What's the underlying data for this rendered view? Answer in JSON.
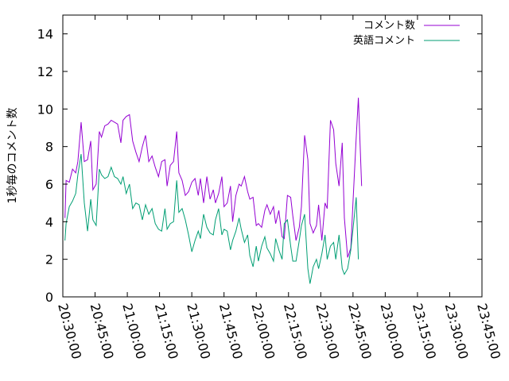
{
  "chart_data": {
    "type": "line",
    "title": "",
    "xlabel": "",
    "ylabel": "1秒毎のコメント数",
    "xlim": [
      "20:30:00",
      "23:45:00"
    ],
    "ylim": [
      0,
      15
    ],
    "x_ticks": [
      "20:30:00",
      "20:45:00",
      "21:00:00",
      "21:15:00",
      "21:30:00",
      "21:45:00",
      "22:00:00",
      "22:15:00",
      "22:30:00",
      "22:45:00",
      "23:00:00",
      "23:15:00",
      "23:30:00",
      "23:45:00"
    ],
    "y_ticks": [
      0,
      2,
      4,
      6,
      8,
      10,
      12,
      14
    ],
    "grid": false,
    "legend_position": "top-right",
    "series": [
      {
        "name": "コメント数",
        "color": "#9400d3",
        "points": [
          [
            "20:31:00",
            4.2
          ],
          [
            "20:31:30",
            6.2
          ],
          [
            "20:33:00",
            6.1
          ],
          [
            "20:34:30",
            6.8
          ],
          [
            "20:36:00",
            6.6
          ],
          [
            "20:37:00",
            7.2
          ],
          [
            "20:38:30",
            9.3
          ],
          [
            "20:40:00",
            7.2
          ],
          [
            "20:41:30",
            7.3
          ],
          [
            "20:43:00",
            8.3
          ],
          [
            "20:44:00",
            5.7
          ],
          [
            "20:45:30",
            6.0
          ],
          [
            "20:47:00",
            8.8
          ],
          [
            "20:48:00",
            8.5
          ],
          [
            "20:49:30",
            9.1
          ],
          [
            "20:51:00",
            9.2
          ],
          [
            "20:52:30",
            9.4
          ],
          [
            "20:54:00",
            9.3
          ],
          [
            "20:55:30",
            9.2
          ],
          [
            "20:57:00",
            8.2
          ],
          [
            "20:58:00",
            9.4
          ],
          [
            "20:59:30",
            9.6
          ],
          [
            "21:01:00",
            9.7
          ],
          [
            "21:02:30",
            8.3
          ],
          [
            "21:04:00",
            7.7
          ],
          [
            "21:05:30",
            7.2
          ],
          [
            "21:07:00",
            8.0
          ],
          [
            "21:08:30",
            8.6
          ],
          [
            "21:10:00",
            7.2
          ],
          [
            "21:11:30",
            7.5
          ],
          [
            "21:13:00",
            6.9
          ],
          [
            "21:14:30",
            6.4
          ],
          [
            "21:16:00",
            7.2
          ],
          [
            "21:17:30",
            7.3
          ],
          [
            "21:18:30",
            5.9
          ],
          [
            "21:20:00",
            7.0
          ],
          [
            "21:21:30",
            7.2
          ],
          [
            "21:23:00",
            8.8
          ],
          [
            "21:24:00",
            6.6
          ],
          [
            "21:25:30",
            6.2
          ],
          [
            "21:27:00",
            5.4
          ],
          [
            "21:28:30",
            5.6
          ],
          [
            "21:30:00",
            6.1
          ],
          [
            "21:31:30",
            6.3
          ],
          [
            "21:33:00",
            5.4
          ],
          [
            "21:34:00",
            6.3
          ],
          [
            "21:35:30",
            5.0
          ],
          [
            "21:37:00",
            6.4
          ],
          [
            "21:38:30",
            5.2
          ],
          [
            "21:40:00",
            5.7
          ],
          [
            "21:41:00",
            5.0
          ],
          [
            "21:42:30",
            5.5
          ],
          [
            "21:44:00",
            6.4
          ],
          [
            "21:45:00",
            4.8
          ],
          [
            "21:46:30",
            5.0
          ],
          [
            "21:48:00",
            5.9
          ],
          [
            "21:49:00",
            4.0
          ],
          [
            "21:50:30",
            5.4
          ],
          [
            "21:52:00",
            6.0
          ],
          [
            "21:53:00",
            5.9
          ],
          [
            "21:54:30",
            6.4
          ],
          [
            "21:56:00",
            5.6
          ],
          [
            "21:57:00",
            5.2
          ],
          [
            "21:58:30",
            5.3
          ],
          [
            "22:00:00",
            3.8
          ],
          [
            "22:01:00",
            3.9
          ],
          [
            "22:02:30",
            3.7
          ],
          [
            "22:04:00",
            4.6
          ],
          [
            "22:05:00",
            4.9
          ],
          [
            "22:06:30",
            4.4
          ],
          [
            "22:08:00",
            4.8
          ],
          [
            "22:09:00",
            3.9
          ],
          [
            "22:10:30",
            4.6
          ],
          [
            "22:12:00",
            3.2
          ],
          [
            "22:13:00",
            3.1
          ],
          [
            "22:14:30",
            5.4
          ],
          [
            "22:16:00",
            5.3
          ],
          [
            "22:17:00",
            4.3
          ],
          [
            "22:18:30",
            3.0
          ],
          [
            "22:20:00",
            3.7
          ],
          [
            "22:21:00",
            4.8
          ],
          [
            "22:22:30",
            8.6
          ],
          [
            "22:24:00",
            7.3
          ],
          [
            "22:25:00",
            3.9
          ],
          [
            "22:26:30",
            3.4
          ],
          [
            "22:28:00",
            3.8
          ],
          [
            "22:29:00",
            4.9
          ],
          [
            "22:30:30",
            3.0
          ],
          [
            "22:32:00",
            5.0
          ],
          [
            "22:33:00",
            4.7
          ],
          [
            "22:34:30",
            9.4
          ],
          [
            "22:36:00",
            8.9
          ],
          [
            "22:37:00",
            7.1
          ],
          [
            "22:38:30",
            5.9
          ],
          [
            "22:40:00",
            8.2
          ],
          [
            "22:41:00",
            4.2
          ],
          [
            "22:42:30",
            2.1
          ],
          [
            "22:44:00",
            2.6
          ],
          [
            "22:45:00",
            5.0
          ],
          [
            "22:46:30",
            8.5
          ],
          [
            "22:47:30",
            10.6
          ],
          [
            "22:49:00",
            5.9
          ]
        ]
      },
      {
        "name": "英語コメント",
        "color": "#009e73",
        "points": [
          [
            "20:31:00",
            3.0
          ],
          [
            "20:31:30",
            3.9
          ],
          [
            "20:33:00",
            4.8
          ],
          [
            "20:34:30",
            5.1
          ],
          [
            "20:36:00",
            5.5
          ],
          [
            "20:37:00",
            6.5
          ],
          [
            "20:38:30",
            7.6
          ],
          [
            "20:40:00",
            5.0
          ],
          [
            "20:41:30",
            3.5
          ],
          [
            "20:43:00",
            5.2
          ],
          [
            "20:44:00",
            4.1
          ],
          [
            "20:45:30",
            3.8
          ],
          [
            "20:47:00",
            6.8
          ],
          [
            "20:48:00",
            6.5
          ],
          [
            "20:49:30",
            6.3
          ],
          [
            "20:51:00",
            6.4
          ],
          [
            "20:52:30",
            6.9
          ],
          [
            "20:54:00",
            6.4
          ],
          [
            "20:55:30",
            6.3
          ],
          [
            "20:57:00",
            6.0
          ],
          [
            "20:58:00",
            6.4
          ],
          [
            "20:59:30",
            5.5
          ],
          [
            "21:01:00",
            6.0
          ],
          [
            "21:02:30",
            4.7
          ],
          [
            "21:04:00",
            5.0
          ],
          [
            "21:05:30",
            4.9
          ],
          [
            "21:07:00",
            4.1
          ],
          [
            "21:08:30",
            4.9
          ],
          [
            "21:10:00",
            4.4
          ],
          [
            "21:11:30",
            4.7
          ],
          [
            "21:13:00",
            3.9
          ],
          [
            "21:14:30",
            3.6
          ],
          [
            "21:16:00",
            3.5
          ],
          [
            "21:17:30",
            4.7
          ],
          [
            "21:18:30",
            3.6
          ],
          [
            "21:20:00",
            3.9
          ],
          [
            "21:21:30",
            4.0
          ],
          [
            "21:23:00",
            6.2
          ],
          [
            "21:24:00",
            4.5
          ],
          [
            "21:25:30",
            4.7
          ],
          [
            "21:27:00",
            4.1
          ],
          [
            "21:28:30",
            3.3
          ],
          [
            "21:30:00",
            2.4
          ],
          [
            "21:31:30",
            3.0
          ],
          [
            "21:33:00",
            3.5
          ],
          [
            "21:34:00",
            3.1
          ],
          [
            "21:35:30",
            4.4
          ],
          [
            "21:37:00",
            3.7
          ],
          [
            "21:38:30",
            3.4
          ],
          [
            "21:40:00",
            3.3
          ],
          [
            "21:41:00",
            4.1
          ],
          [
            "21:42:30",
            4.7
          ],
          [
            "21:44:00",
            3.3
          ],
          [
            "21:45:00",
            3.6
          ],
          [
            "21:46:30",
            3.5
          ],
          [
            "21:48:00",
            2.5
          ],
          [
            "21:49:00",
            3.0
          ],
          [
            "21:50:30",
            3.5
          ],
          [
            "21:52:00",
            4.2
          ],
          [
            "21:53:00",
            3.6
          ],
          [
            "21:54:30",
            2.9
          ],
          [
            "21:56:00",
            3.3
          ],
          [
            "21:57:00",
            2.2
          ],
          [
            "21:58:30",
            1.6
          ],
          [
            "22:00:00",
            2.7
          ],
          [
            "22:01:00",
            1.9
          ],
          [
            "22:02:30",
            2.7
          ],
          [
            "22:04:00",
            3.2
          ],
          [
            "22:05:00",
            2.6
          ],
          [
            "22:06:30",
            2.3
          ],
          [
            "22:08:00",
            1.9
          ],
          [
            "22:09:00",
            3.1
          ],
          [
            "22:10:30",
            2.5
          ],
          [
            "22:12:00",
            2.0
          ],
          [
            "22:13:00",
            3.9
          ],
          [
            "22:14:30",
            4.1
          ],
          [
            "22:16:00",
            2.7
          ],
          [
            "22:17:00",
            1.9
          ],
          [
            "22:18:30",
            1.9
          ],
          [
            "22:20:00",
            3.0
          ],
          [
            "22:21:00",
            3.8
          ],
          [
            "22:22:30",
            4.4
          ],
          [
            "22:24:00",
            1.5
          ],
          [
            "22:25:00",
            0.7
          ],
          [
            "22:26:30",
            1.6
          ],
          [
            "22:28:00",
            2.0
          ],
          [
            "22:29:00",
            1.5
          ],
          [
            "22:30:30",
            2.3
          ],
          [
            "22:32:00",
            3.3
          ],
          [
            "22:33:00",
            2.0
          ],
          [
            "22:34:30",
            2.7
          ],
          [
            "22:36:00",
            2.9
          ],
          [
            "22:37:00",
            2.0
          ],
          [
            "22:38:30",
            3.3
          ],
          [
            "22:40:00",
            1.5
          ],
          [
            "22:41:00",
            1.2
          ],
          [
            "22:42:30",
            1.5
          ],
          [
            "22:44:00",
            2.5
          ],
          [
            "22:45:00",
            3.6
          ],
          [
            "22:46:30",
            5.3
          ],
          [
            "22:47:30",
            2.0
          ]
        ]
      }
    ]
  }
}
